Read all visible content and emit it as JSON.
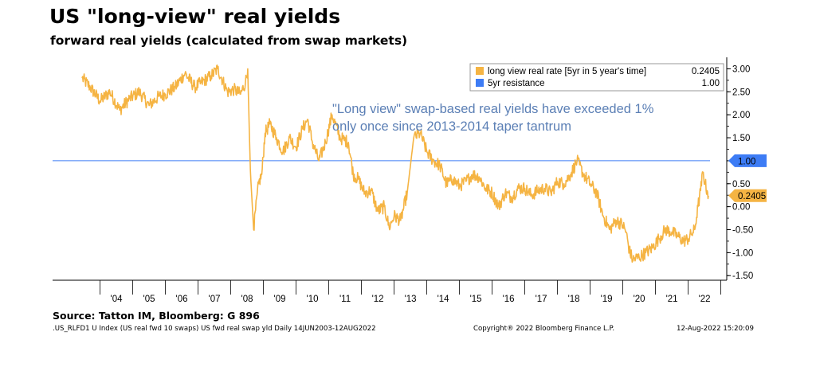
{
  "title": "US \"long-view\" real yields",
  "subtitle": "forward real yields (calculated from swap markets)",
  "source": "Source: Tatton IM, Bloomberg: G 896",
  "footer": {
    "index": ".US_RLFD1 U Index (US real fwd 10 swaps) US fwd real swap yld  Daily 14JUN2003-12AUG2022",
    "copyright": "Copyright® 2022 Bloomberg Finance L.P.",
    "timestamp": "12-Aug-2022 15:20:09"
  },
  "chart_data": {
    "type": "line",
    "annotation": "\"Long view\" swap-based real yields have exceeded 1% only once since 2013-2014 taper tantrum",
    "annotation_lines": [
      "\"Long view\" swap-based real yields have exceeded 1%",
      "only once since 2013-2014 taper tantrum"
    ],
    "x_range": [
      2003.45,
      2022.62
    ],
    "ylim": [
      -1.6,
      3.25
    ],
    "y_ticks": [
      -1.5,
      -1.0,
      -0.5,
      0.0,
      0.5,
      1.0,
      1.5,
      2.0,
      2.5,
      3.0
    ],
    "y_tick_labels": [
      "-1.50",
      "-1.00",
      "-0.50",
      "0.00",
      "0.50",
      "1.00",
      "1.50",
      "2.00",
      "2.50",
      "3.00"
    ],
    "y_axis_side": "right",
    "x_tick_labels": [
      "'04",
      "'05",
      "'06",
      "'07",
      "'08",
      "'09",
      "'10",
      "'11",
      "'12",
      "'13",
      "'14",
      "'15",
      "'16",
      "'17",
      "'18",
      "'19",
      "'20",
      "'21",
      "'22"
    ],
    "x_tick_years": [
      2004,
      2005,
      2006,
      2007,
      2008,
      2009,
      2010,
      2011,
      2012,
      2013,
      2014,
      2015,
      2016,
      2017,
      2018,
      2019,
      2020,
      2021,
      2022
    ],
    "grid": false,
    "legend_position": "top-right",
    "series": [
      {
        "name": "long view real rate [5yr in 5 year's time]",
        "last_value": 0.2405,
        "last_label": "0.2405",
        "legend_value": "0.2405",
        "color": "#F5B443",
        "x": [
          2003.45,
          2003.7,
          2004.0,
          2004.3,
          2004.6,
          2004.9,
          2005.2,
          2005.5,
          2005.8,
          2006.0,
          2006.3,
          2006.6,
          2006.9,
          2007.1,
          2007.4,
          2007.6,
          2007.9,
          2008.1,
          2008.3,
          2008.45,
          2008.52,
          2008.6,
          2008.7,
          2008.85,
          2008.95,
          2009.05,
          2009.2,
          2009.4,
          2009.6,
          2009.8,
          2010.0,
          2010.2,
          2010.35,
          2010.5,
          2010.7,
          2010.9,
          2011.1,
          2011.35,
          2011.6,
          2011.75,
          2011.9,
          2012.1,
          2012.3,
          2012.5,
          2012.7,
          2012.85,
          2013.0,
          2013.2,
          2013.4,
          2013.6,
          2013.8,
          2014.0,
          2014.2,
          2014.4,
          2014.6,
          2014.8,
          2015.0,
          2015.2,
          2015.4,
          2015.6,
          2015.8,
          2016.0,
          2016.2,
          2016.4,
          2016.6,
          2016.8,
          2017.0,
          2017.2,
          2017.4,
          2017.6,
          2017.8,
          2018.0,
          2018.2,
          2018.4,
          2018.6,
          2018.8,
          2019.0,
          2019.2,
          2019.4,
          2019.6,
          2019.8,
          2020.0,
          2020.1,
          2020.2,
          2020.3,
          2020.5,
          2020.7,
          2020.9,
          2021.1,
          2021.3,
          2021.5,
          2021.7,
          2021.85,
          2022.0,
          2022.1,
          2022.2,
          2022.3,
          2022.38,
          2022.45,
          2022.52,
          2022.58,
          2022.62
        ],
        "values": [
          2.8,
          2.6,
          2.3,
          2.5,
          2.1,
          2.35,
          2.5,
          2.2,
          2.4,
          2.45,
          2.6,
          2.9,
          2.6,
          2.7,
          2.85,
          3.0,
          2.5,
          2.55,
          2.45,
          2.7,
          3.0,
          0.8,
          -0.5,
          0.5,
          0.7,
          1.6,
          1.8,
          1.5,
          1.2,
          1.5,
          1.3,
          1.7,
          1.9,
          1.4,
          1.0,
          1.4,
          2.0,
          1.5,
          1.4,
          0.7,
          0.6,
          0.3,
          0.35,
          -0.1,
          0.0,
          -0.45,
          -0.2,
          -0.3,
          0.3,
          1.5,
          1.6,
          1.2,
          1.0,
          0.9,
          0.5,
          0.6,
          0.45,
          0.55,
          0.7,
          0.65,
          0.4,
          0.3,
          0.0,
          0.3,
          0.2,
          0.4,
          0.4,
          0.25,
          0.35,
          0.4,
          0.3,
          0.55,
          0.5,
          0.7,
          1.0,
          0.7,
          0.5,
          0.3,
          -0.2,
          -0.5,
          -0.3,
          -0.4,
          -0.55,
          -0.95,
          -1.15,
          -1.1,
          -1.0,
          -0.9,
          -0.7,
          -0.5,
          -0.55,
          -0.65,
          -0.75,
          -0.7,
          -0.6,
          -0.5,
          0.0,
          0.35,
          0.75,
          0.5,
          0.35,
          0.24
        ]
      },
      {
        "name": "5yr resistance",
        "values": [
          1.0
        ],
        "last_label": "1.00",
        "legend_value": "1.00",
        "color": "#3D7CF5"
      }
    ]
  }
}
